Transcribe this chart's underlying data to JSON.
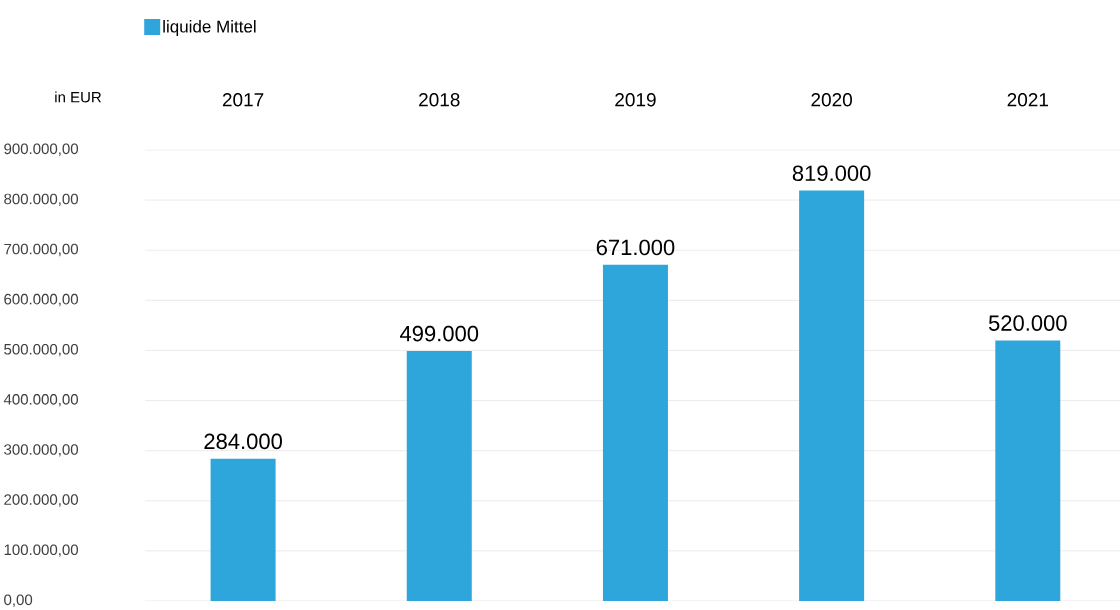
{
  "chart_data": {
    "type": "bar",
    "ylabel": "in EUR",
    "categories": [
      "2017",
      "2018",
      "2019",
      "2020",
      "2021"
    ],
    "series": [
      {
        "name": "liquide Mittel",
        "color": "#2ea6dc",
        "values": [
          284000,
          499000,
          671000,
          819000,
          520000
        ],
        "value_labels": [
          "284.000",
          "499.000",
          "671.000",
          "819.000",
          "520.000"
        ]
      }
    ],
    "ylim": [
      0,
      900000
    ],
    "yticks": [
      {
        "value": 0,
        "label": "0,00"
      },
      {
        "value": 100000,
        "label": "100.000,00"
      },
      {
        "value": 200000,
        "label": "200.000,00"
      },
      {
        "value": 300000,
        "label": "300.000,00"
      },
      {
        "value": 400000,
        "label": "400.000,00"
      },
      {
        "value": 500000,
        "label": "500.000,00"
      },
      {
        "value": 600000,
        "label": "600.000,00"
      },
      {
        "value": 700000,
        "label": "700.000,00"
      },
      {
        "value": 800000,
        "label": "800.000,00"
      },
      {
        "value": 900000,
        "label": "900.000,00"
      }
    ],
    "grid": "y",
    "legend": "top left"
  }
}
